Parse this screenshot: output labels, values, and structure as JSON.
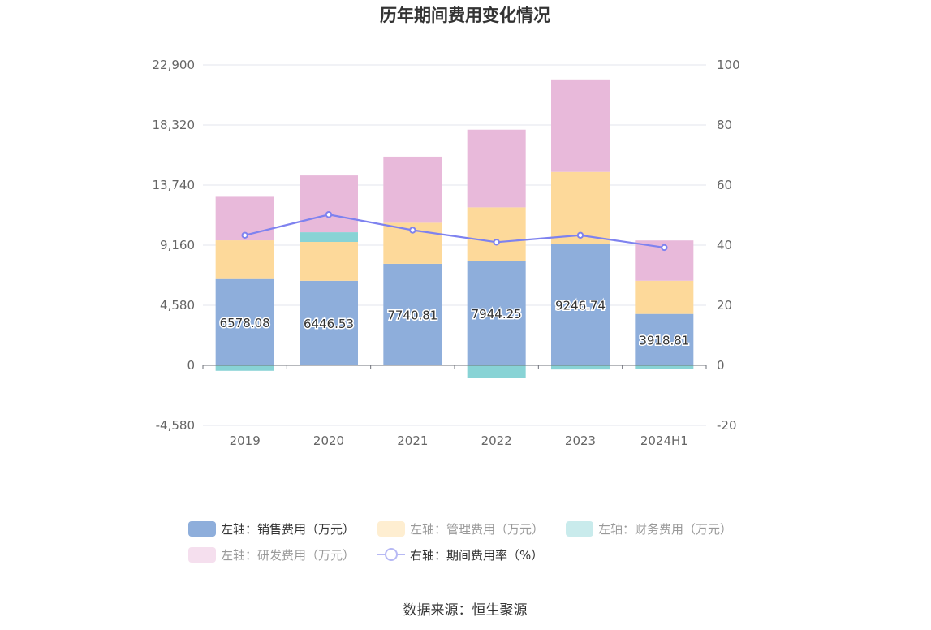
{
  "title": "历年期间费用变化情况",
  "source": "数据来源：恒生聚源",
  "chart_data": {
    "type": "bar",
    "stacked": true,
    "categories": [
      "2019",
      "2020",
      "2021",
      "2022",
      "2023",
      "2024H1"
    ],
    "y_left": {
      "min": -4580,
      "max": 22900,
      "ticks": [
        "-4,580",
        "0",
        "4,580",
        "9,160",
        "13,740",
        "18,320",
        "22,900"
      ]
    },
    "y_right": {
      "min": -20,
      "max": 100,
      "ticks": [
        "-20",
        "0",
        "20",
        "40",
        "60",
        "80",
        "100"
      ]
    },
    "series": [
      {
        "name": "左轴：销售费用（万元）",
        "axis": "left",
        "color": "#8eaedb",
        "values": [
          6578.08,
          6446.53,
          7740.81,
          7944.25,
          9246.74,
          3918.81
        ],
        "labels": [
          "6578.08",
          "6446.53",
          "7740.81",
          "7944.25",
          "9246.74",
          "3918.81"
        ]
      },
      {
        "name": "左轴：管理费用（万元）",
        "axis": "left",
        "color": "#fdd99a",
        "values": [
          2950,
          2960,
          3130,
          4100,
          5500,
          2530
        ]
      },
      {
        "name": "左轴：财务费用（万元）",
        "axis": "left",
        "color": "#88d3d5",
        "values": [
          -420,
          740,
          0,
          -950,
          -320,
          -280
        ]
      },
      {
        "name": "左轴：研发费用（万元）",
        "axis": "left",
        "color": "#e8b9da",
        "values": [
          3320,
          4330,
          5040,
          5920,
          7050,
          3070
        ]
      },
      {
        "name": "右轴：期间费用率（%）",
        "axis": "right",
        "type": "line",
        "color": "#7e82ef",
        "values": [
          43.3,
          50.2,
          45.0,
          41.0,
          43.3,
          39.2
        ]
      }
    ]
  }
}
